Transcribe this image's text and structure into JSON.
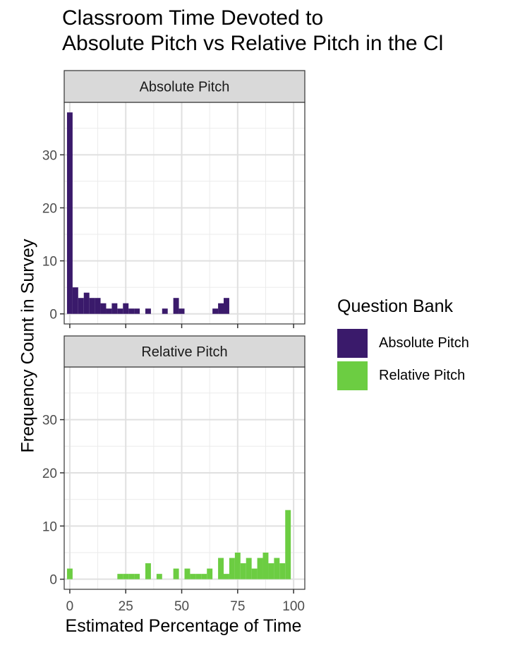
{
  "title_line1": "Classroom Time Devoted to",
  "title_line2": "Absolute Pitch vs Relative Pitch in the Cl",
  "chart_data": {
    "type": "bar",
    "xlabel": "Estimated Percentage of Time",
    "ylabel": "Frequency Count in Survey",
    "x_ticks": [
      0,
      25,
      50,
      75,
      100
    ],
    "y_ticks": [
      0,
      10,
      20,
      30
    ],
    "xlim": [
      -2.5,
      105
    ],
    "ylim": [
      -1.9,
      39.9
    ],
    "bin_width": 2.5,
    "legend": {
      "title": "Question Bank",
      "position": "right"
    },
    "grid": true,
    "panels": [
      {
        "name": "Absolute Pitch",
        "color": "#3a1a6b",
        "bins": [
          {
            "x": 0,
            "count": 38
          },
          {
            "x": 2.5,
            "count": 5
          },
          {
            "x": 5,
            "count": 3
          },
          {
            "x": 7.5,
            "count": 4
          },
          {
            "x": 10,
            "count": 3
          },
          {
            "x": 12.5,
            "count": 3
          },
          {
            "x": 15,
            "count": 2
          },
          {
            "x": 17.5,
            "count": 1
          },
          {
            "x": 20,
            "count": 2
          },
          {
            "x": 22.5,
            "count": 1
          },
          {
            "x": 25,
            "count": 2
          },
          {
            "x": 27.5,
            "count": 1
          },
          {
            "x": 30,
            "count": 1
          },
          {
            "x": 35,
            "count": 1
          },
          {
            "x": 42.5,
            "count": 1
          },
          {
            "x": 47.5,
            "count": 3
          },
          {
            "x": 50,
            "count": 1
          },
          {
            "x": 65,
            "count": 1
          },
          {
            "x": 67.5,
            "count": 2
          },
          {
            "x": 70,
            "count": 3
          }
        ]
      },
      {
        "name": "Relative Pitch",
        "color": "#6ccd42",
        "bins": [
          {
            "x": 0,
            "count": 2
          },
          {
            "x": 22.5,
            "count": 1
          },
          {
            "x": 25,
            "count": 1
          },
          {
            "x": 27.5,
            "count": 1
          },
          {
            "x": 30,
            "count": 1
          },
          {
            "x": 35,
            "count": 3
          },
          {
            "x": 40,
            "count": 1
          },
          {
            "x": 47.5,
            "count": 2
          },
          {
            "x": 52.5,
            "count": 2
          },
          {
            "x": 55,
            "count": 1
          },
          {
            "x": 57.5,
            "count": 1
          },
          {
            "x": 60,
            "count": 1
          },
          {
            "x": 62.5,
            "count": 2
          },
          {
            "x": 67.5,
            "count": 4
          },
          {
            "x": 70,
            "count": 1
          },
          {
            "x": 72.5,
            "count": 4
          },
          {
            "x": 75,
            "count": 5
          },
          {
            "x": 77.5,
            "count": 3
          },
          {
            "x": 80,
            "count": 4
          },
          {
            "x": 82.5,
            "count": 2
          },
          {
            "x": 85,
            "count": 4
          },
          {
            "x": 87.5,
            "count": 5
          },
          {
            "x": 90,
            "count": 3
          },
          {
            "x": 92.5,
            "count": 4
          },
          {
            "x": 95,
            "count": 3
          },
          {
            "x": 97.5,
            "count": 13
          }
        ]
      }
    ]
  }
}
